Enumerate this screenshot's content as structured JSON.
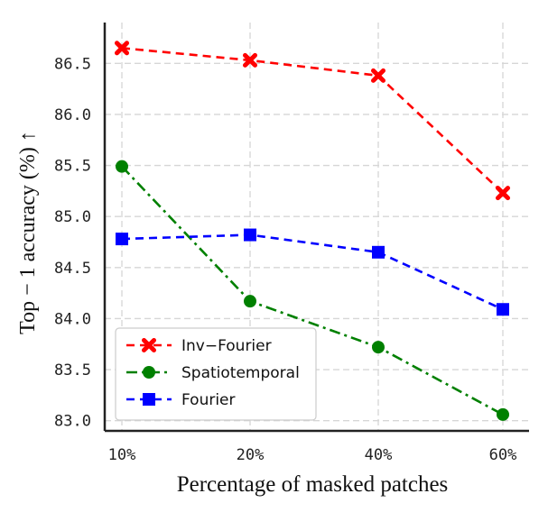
{
  "chart_data": {
    "type": "line",
    "title": "",
    "xlabel": "Percentage of masked patches",
    "ylabel": "Top − 1 accuracy (%) ↑",
    "categories": [
      "10%",
      "20%",
      "40%",
      "60%"
    ],
    "ylim": [
      82.9,
      86.9
    ],
    "yticks": [
      "83.0",
      "83.5",
      "84.0",
      "84.5",
      "85.0",
      "85.5",
      "86.0",
      "86.5"
    ],
    "ytick_values": [
      83.0,
      83.5,
      84.0,
      84.5,
      85.0,
      85.5,
      86.0,
      86.5
    ],
    "grid": true,
    "legend_position": "bottom-left",
    "series": [
      {
        "name": "Inv−Fourier",
        "values": [
          86.65,
          86.53,
          86.38,
          85.23
        ],
        "color": "#ff0000",
        "marker": "x",
        "linestyle": "dashed"
      },
      {
        "name": "Spatiotemporal",
        "values": [
          85.49,
          84.17,
          83.72,
          83.06
        ],
        "color": "#008000",
        "marker": "circle",
        "linestyle": "dashdot"
      },
      {
        "name": "Fourier",
        "values": [
          84.78,
          84.82,
          84.65,
          84.09
        ],
        "color": "#0000ff",
        "marker": "square",
        "linestyle": "dashed"
      }
    ]
  }
}
